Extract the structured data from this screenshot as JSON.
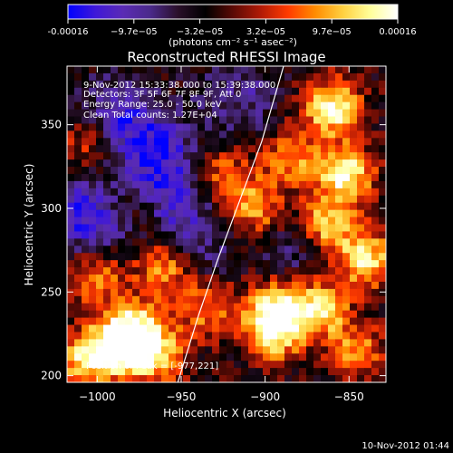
{
  "colorbar": {
    "colors": [
      "#0000ff",
      "#3f18d8",
      "#5a2bb5",
      "#4a2a8a",
      "#2a0f2a",
      "#000000",
      "#5a0a05",
      "#b01a06",
      "#ff3a00",
      "#ff8c00",
      "#ffd040",
      "#ffff9a",
      "#ffffff"
    ],
    "tick_labels": [
      "-0.00016",
      "−9.7e−05",
      "−3.2e−05",
      "3.2e−05",
      "9.7e−05",
      "0.00016"
    ],
    "unit_label": "(photons cm⁻² s⁻¹ asec⁻²)"
  },
  "title": "Reconstructed RHESSI Image",
  "info": {
    "time_range": "9-Nov-2012 15:33:38.000 to 15:39:38.000",
    "detectors": "Detectors: 3F 5F 6F 7F 8F 9F, Att 0",
    "energy": "Energy Range: 25.0 - 50.0 keV",
    "method": "Clean     Total counts: 1.27E+04"
  },
  "peak": "Position of Peak = [-977,221]",
  "footer_timestamp": "10-Nov-2012 01:44",
  "chart_data": {
    "type": "heatmap",
    "title": "Reconstructed RHESSI Image",
    "xlabel": "Heliocentric X (arcsec)",
    "ylabel": "Heliocentric Y (arcsec)",
    "xlim": [
      -1018,
      -828
    ],
    "ylim": [
      196,
      385
    ],
    "xticks": [
      -1000,
      -950,
      -900,
      -850
    ],
    "yticks": [
      200,
      250,
      300,
      350
    ],
    "xtick_labels": [
      "−1000",
      "−950",
      "−900",
      "−850"
    ],
    "ytick_labels": [
      "200",
      "250",
      "300",
      "350"
    ],
    "limb_curve": [
      [
        -952,
        196
      ],
      [
        -940,
        235
      ],
      [
        -928,
        270
      ],
      [
        -915,
        305
      ],
      [
        -902,
        340
      ],
      [
        -889,
        385
      ]
    ],
    "hot_spots": [
      [
        -860,
        360,
        1.0
      ],
      [
        -852,
        320,
        1.0
      ],
      [
        -864,
        290,
        0.9
      ],
      [
        -840,
        270,
        0.9
      ],
      [
        -895,
        240,
        0.8
      ],
      [
        -868,
        240,
        0.9
      ],
      [
        -895,
        225,
        0.8
      ],
      [
        -905,
        300,
        0.7
      ],
      [
        -885,
        330,
        0.6
      ],
      [
        -990,
        215,
        0.9
      ],
      [
        -978,
        228,
        0.9
      ],
      [
        -965,
        212,
        0.8
      ],
      [
        -1000,
        260,
        0.7
      ],
      [
        -960,
        265,
        0.7
      ],
      [
        -1010,
        210,
        0.7
      ],
      [
        -935,
        240,
        0.6
      ],
      [
        -1005,
        340,
        0.5
      ],
      [
        -925,
        320,
        0.5
      ],
      [
        -845,
        215,
        0.6
      ],
      [
        -975,
        300,
        0.4
      ]
    ],
    "cold_spots": [
      [
        -965,
        335,
        1.0
      ],
      [
        -990,
        355,
        0.9
      ],
      [
        -960,
        305,
        0.9
      ],
      [
        -1010,
        300,
        0.7
      ],
      [
        -940,
        280,
        0.6
      ],
      [
        -915,
        365,
        0.6
      ],
      [
        -880,
        280,
        0.6
      ],
      [
        -1000,
        285,
        0.6
      ]
    ]
  }
}
